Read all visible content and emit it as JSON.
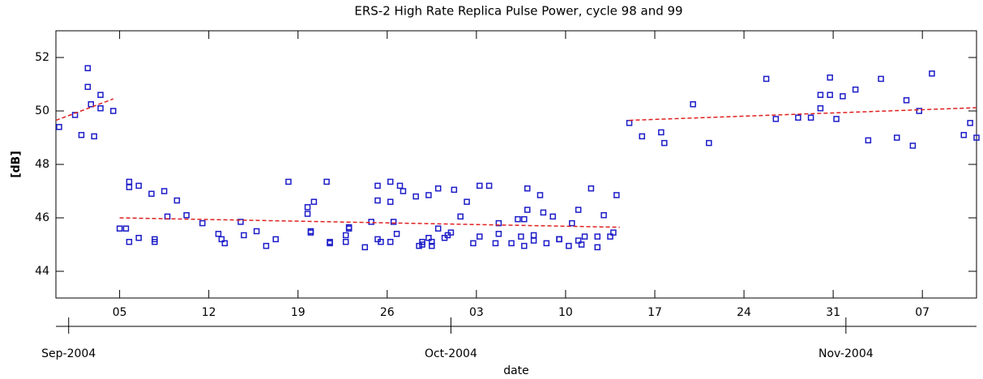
{
  "chart_data": {
    "type": "scatter",
    "title": "ERS-2 High Rate Replica Pulse Power, cycle 98 and 99",
    "x_label": "date",
    "y_label": "[dB]",
    "xlim": [
      "2004-08-31",
      "2004-11-11T06:00"
    ],
    "ylim": [
      43,
      53
    ],
    "yticks": [
      44,
      46,
      48,
      50,
      52
    ],
    "xticks": [
      {
        "value": "2004-09-05",
        "label": "05"
      },
      {
        "value": "2004-09-12",
        "label": "12"
      },
      {
        "value": "2004-09-19",
        "label": "19"
      },
      {
        "value": "2004-09-26",
        "label": "26"
      },
      {
        "value": "2004-10-03",
        "label": "03"
      },
      {
        "value": "2004-10-10",
        "label": "10"
      },
      {
        "value": "2004-10-17",
        "label": "17"
      },
      {
        "value": "2004-10-24",
        "label": "24"
      },
      {
        "value": "2004-10-31",
        "label": "31"
      },
      {
        "value": "2004-11-07",
        "label": "07"
      }
    ],
    "month_ticks": [
      {
        "value": "2004-09-01",
        "label": "Sep-2004"
      },
      {
        "value": "2004-10-01",
        "label": "Oct-2004"
      },
      {
        "value": "2004-11-01",
        "label": "Nov-2004"
      }
    ],
    "series": [
      {
        "type": "scatter",
        "color": "#1c1cc8",
        "x": [
          "2004-08-31T06:00",
          "2004-09-01T12:00",
          "2004-09-02",
          "2004-09-02T12:00",
          "2004-09-02T12:00",
          "2004-09-02T18:00",
          "2004-09-03",
          "2004-09-03T12:00",
          "2004-09-03T12:00",
          "2004-09-04T12:00",
          "2004-09-05",
          "2004-09-05T12:00",
          "2004-09-05T18:00",
          "2004-09-05T18:00",
          "2004-09-05T18:00",
          "2004-09-06T12:00",
          "2004-09-06T12:00",
          "2004-09-07T12:00",
          "2004-09-07T18:00",
          "2004-09-07T18:00",
          "2004-09-08T12:00",
          "2004-09-08T18:00",
          "2004-09-09T12:00",
          "2004-09-10T06:00",
          "2004-09-11T12:00",
          "2004-09-12T18:00",
          "2004-09-13",
          "2004-09-13T06:00",
          "2004-09-14T12:00",
          "2004-09-14T18:00",
          "2004-09-15T18:00",
          "2004-09-16T12:00",
          "2004-09-17T06:00",
          "2004-09-18T06:00",
          "2004-09-19T18:00",
          "2004-09-19T18:00",
          "2004-09-20",
          "2004-09-20",
          "2004-09-20T06:00",
          "2004-09-21T06:00",
          "2004-09-21T12:00",
          "2004-09-21T12:00",
          "2004-09-22T18:00",
          "2004-09-22T18:00",
          "2004-09-23",
          "2004-09-23",
          "2004-09-24T06:00",
          "2004-09-24T18:00",
          "2004-09-25T06:00",
          "2004-09-25T06:00",
          "2004-09-25T06:00",
          "2004-09-25T12:00",
          "2004-09-26T06:00",
          "2004-09-26T06:00",
          "2004-09-26T06:00",
          "2004-09-26T12:00",
          "2004-09-26T18:00",
          "2004-09-27",
          "2004-09-27T06:00",
          "2004-09-28T06:00",
          "2004-09-28T12:00",
          "2004-09-28T18:00",
          "2004-09-28T18:00",
          "2004-09-29T06:00",
          "2004-09-29T06:00",
          "2004-09-29T12:00",
          "2004-09-29T12:00",
          "2004-09-30",
          "2004-09-30",
          "2004-09-30T12:00",
          "2004-09-30T18:00",
          "2004-10-01",
          "2004-10-01T06:00",
          "2004-10-01T18:00",
          "2004-10-02T06:00",
          "2004-10-02T18:00",
          "2004-10-03T06:00",
          "2004-10-03T06:00",
          "2004-10-04",
          "2004-10-04T12:00",
          "2004-10-04T18:00",
          "2004-10-04T18:00",
          "2004-10-05T18:00",
          "2004-10-06T06:00",
          "2004-10-06T12:00",
          "2004-10-06T18:00",
          "2004-10-06T18:00",
          "2004-10-07",
          "2004-10-07",
          "2004-10-07T12:00",
          "2004-10-07T12:00",
          "2004-10-08",
          "2004-10-08T06:00",
          "2004-10-08T12:00",
          "2004-10-09",
          "2004-10-09T12:00",
          "2004-10-09T12:00",
          "2004-10-10T06:00",
          "2004-10-10T12:00",
          "2004-10-11",
          "2004-10-11",
          "2004-10-11T06:00",
          "2004-10-11T12:00",
          "2004-10-12",
          "2004-10-12T12:00",
          "2004-10-12T12:00",
          "2004-10-13",
          "2004-10-13T12:00",
          "2004-10-13T18:00",
          "2004-10-14",
          "2004-10-15",
          "2004-10-16",
          "2004-10-17T12:00",
          "2004-10-17T18:00",
          "2004-10-20",
          "2004-10-21T06:00",
          "2004-10-25T18:00",
          "2004-10-26T12:00",
          "2004-10-28T06:00",
          "2004-10-29T06:00",
          "2004-10-30",
          "2004-10-30",
          "2004-10-30T18:00",
          "2004-10-30T18:00",
          "2004-10-31T06:00",
          "2004-10-31T18:00",
          "2004-11-01T18:00",
          "2004-11-02T18:00",
          "2004-11-03T18:00",
          "2004-11-05",
          "2004-11-05T18:00",
          "2004-11-06T06:00",
          "2004-11-06T18:00",
          "2004-11-07T18:00",
          "2004-11-10T06:00",
          "2004-11-10T18:00",
          "2004-11-11T06:00"
        ],
        "values": [
          49.4,
          49.85,
          49.1,
          51.6,
          50.9,
          50.25,
          49.05,
          50.6,
          50.1,
          50.0,
          45.6,
          45.6,
          47.35,
          47.15,
          45.1,
          47.2,
          45.25,
          46.9,
          45.1,
          45.2,
          47.0,
          46.05,
          46.65,
          46.1,
          45.8,
          45.4,
          45.2,
          45.05,
          45.85,
          45.35,
          45.5,
          44.95,
          45.2,
          47.35,
          46.4,
          46.15,
          45.5,
          45.45,
          46.6,
          47.35,
          45.1,
          45.05,
          45.35,
          45.1,
          45.65,
          45.6,
          44.9,
          45.85,
          47.2,
          46.65,
          45.2,
          45.1,
          47.35,
          46.6,
          45.1,
          45.85,
          45.4,
          47.2,
          47.0,
          46.8,
          44.95,
          45.0,
          45.1,
          46.85,
          45.25,
          45.1,
          44.95,
          45.6,
          47.1,
          45.25,
          45.35,
          45.45,
          47.05,
          46.05,
          46.6,
          45.05,
          47.2,
          45.3,
          47.2,
          45.05,
          45.4,
          45.8,
          45.05,
          45.95,
          45.3,
          45.95,
          44.95,
          46.3,
          47.1,
          45.15,
          45.35,
          46.85,
          46.2,
          45.05,
          46.05,
          45.2,
          45.2,
          44.95,
          45.8,
          46.3,
          45.15,
          45.0,
          45.3,
          47.1,
          44.9,
          45.3,
          46.1,
          45.3,
          45.45,
          46.85,
          49.55,
          49.05,
          49.2,
          48.8,
          50.25,
          48.8,
          51.2,
          49.7,
          49.75,
          49.75,
          50.6,
          50.1,
          51.25,
          50.6,
          49.7,
          50.55,
          50.8,
          48.9,
          51.2,
          49.0,
          50.4,
          48.7,
          50.0,
          51.4,
          49.1,
          49.55,
          49.0
        ]
      },
      {
        "type": "line",
        "color": "#e02020",
        "dashed": true,
        "x": [
          "2004-08-31",
          "2004-09-04T12:00"
        ],
        "values": [
          49.65,
          50.45
        ]
      },
      {
        "type": "line",
        "color": "#e02020",
        "dashed": true,
        "x": [
          "2004-09-05",
          "2004-10-14T06:00"
        ],
        "values": [
          46.0,
          45.65
        ]
      },
      {
        "type": "line",
        "color": "#e02020",
        "dashed": true,
        "x": [
          "2004-10-15",
          "2004-11-11T06:00"
        ],
        "values": [
          49.65,
          50.12
        ]
      }
    ]
  }
}
